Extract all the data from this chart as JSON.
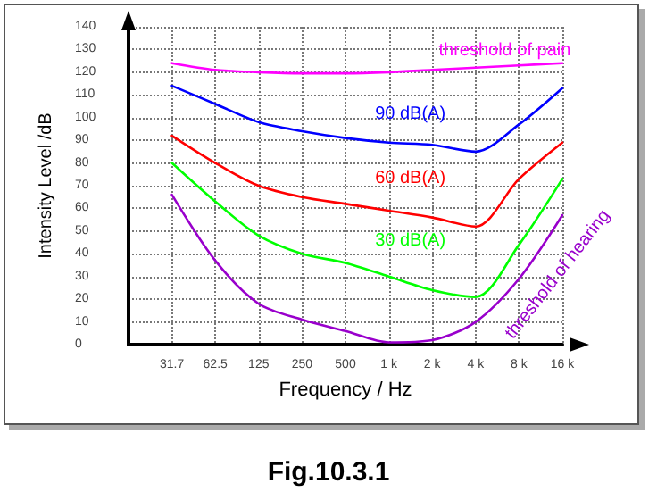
{
  "chart_data": {
    "type": "line",
    "xlabel": "Frequency / Hz",
    "ylabel": "Intensity Level /dB",
    "categories": [
      null,
      "31.7",
      "62.5",
      "125",
      "250",
      "500",
      "1 k",
      "2 k",
      "4 k",
      "8 k",
      "16 k"
    ],
    "ylim": [
      0,
      140
    ],
    "yticks": [
      0,
      10,
      20,
      30,
      40,
      50,
      60,
      70,
      80,
      90,
      100,
      110,
      120,
      130,
      140
    ],
    "grid": true,
    "legend": false,
    "marker": "none",
    "line_style": "solid",
    "series": [
      {
        "name": "threshold of pain",
        "color": "#ff00ff",
        "values": [
          null,
          124,
          121,
          120,
          119.5,
          119.5,
          120,
          121,
          122,
          123,
          124
        ]
      },
      {
        "name": "90 dB(A)",
        "color": "#0000ff",
        "values": [
          null,
          114,
          106,
          98,
          94,
          91,
          89,
          88,
          85,
          97,
          113
        ]
      },
      {
        "name": "60 dB(A)",
        "color": "#ff0000",
        "values": [
          null,
          92,
          80,
          70,
          65,
          62,
          59,
          56,
          52,
          73,
          89
        ]
      },
      {
        "name": "30 dB(A)",
        "color": "#00ff00",
        "values": [
          null,
          80,
          63,
          48,
          40,
          36,
          30,
          24,
          21,
          44,
          73
        ]
      },
      {
        "name": "threshold of hearing",
        "color": "#9900cc",
        "values": [
          null,
          66,
          37,
          18,
          11,
          6,
          1,
          2,
          10,
          29,
          57
        ]
      }
    ],
    "annotations": [
      "Fig.10.3.1"
    ]
  }
}
